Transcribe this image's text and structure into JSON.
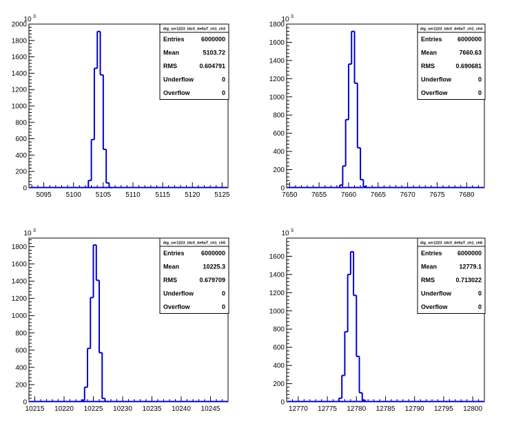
{
  "chart_data": [
    {
      "type": "bar",
      "title": "dig_ser1223_tdc0_deltaT_ch1_ch3",
      "ylim": [
        0,
        2000
      ],
      "xlim": [
        5092.5,
        5126
      ],
      "yticks": [
        0,
        200,
        400,
        600,
        800,
        1000,
        1200,
        1400,
        1600,
        1800,
        2000
      ],
      "xticks": [
        5095,
        5100,
        5105,
        5110,
        5115,
        5120,
        5125
      ],
      "exponent_base": "10",
      "exponent_power": "3",
      "bin_width": 0.5,
      "bins": [
        {
          "x": 5102.0,
          "value": 5
        },
        {
          "x": 5102.5,
          "value": 90
        },
        {
          "x": 5103.0,
          "value": 590
        },
        {
          "x": 5103.5,
          "value": 1460
        },
        {
          "x": 5104.0,
          "value": 1910
        },
        {
          "x": 5104.5,
          "value": 1380
        },
        {
          "x": 5105.0,
          "value": 470
        },
        {
          "x": 5105.5,
          "value": 60
        },
        {
          "x": 5106.0,
          "value": 3
        }
      ],
      "stats": {
        "Entries": "6000000",
        "Mean": "5103.72",
        "RMS": "0.604791",
        "Underflow": "0",
        "Overflow": "0"
      }
    },
    {
      "type": "bar",
      "title": "dig_ser1223_tdc0_deltaT_ch1_ch4",
      "ylim": [
        0,
        1800
      ],
      "xlim": [
        7649.5,
        7683
      ],
      "yticks": [
        0,
        200,
        400,
        600,
        800,
        1000,
        1200,
        1400,
        1600,
        1800
      ],
      "xticks": [
        7650,
        7655,
        7660,
        7665,
        7670,
        7675,
        7680
      ],
      "exponent_base": "10",
      "exponent_power": "3",
      "bin_width": 0.5,
      "bins": [
        {
          "x": 7658.5,
          "value": 30
        },
        {
          "x": 7659.0,
          "value": 240
        },
        {
          "x": 7659.5,
          "value": 750
        },
        {
          "x": 7660.0,
          "value": 1360
        },
        {
          "x": 7660.5,
          "value": 1720
        },
        {
          "x": 7661.0,
          "value": 1150
        },
        {
          "x": 7661.5,
          "value": 440
        },
        {
          "x": 7662.0,
          "value": 90
        },
        {
          "x": 7662.5,
          "value": 15
        }
      ],
      "stats": {
        "Entries": "6000000",
        "Mean": "7660.63",
        "RMS": "0.690681",
        "Underflow": "0",
        "Overflow": "0"
      }
    },
    {
      "type": "bar",
      "title": "dig_ser1223_tdc0_deltaT_ch1_ch5",
      "ylim": [
        0,
        1900
      ],
      "xlim": [
        10214,
        10248
      ],
      "yticks": [
        0,
        200,
        400,
        600,
        800,
        1000,
        1200,
        1400,
        1600,
        1800
      ],
      "xticks": [
        10215,
        10220,
        10225,
        10230,
        10235,
        10240,
        10245
      ],
      "exponent_base": "10",
      "exponent_power": "3",
      "bin_width": 0.5,
      "bins": [
        {
          "x": 10223.0,
          "value": 20
        },
        {
          "x": 10223.5,
          "value": 170
        },
        {
          "x": 10224.0,
          "value": 620
        },
        {
          "x": 10224.5,
          "value": 1210
        },
        {
          "x": 10225.0,
          "value": 1820
        },
        {
          "x": 10225.5,
          "value": 1410
        },
        {
          "x": 10226.0,
          "value": 570
        },
        {
          "x": 10226.5,
          "value": 40
        },
        {
          "x": 10227.0,
          "value": 5
        }
      ],
      "stats": {
        "Entries": "6000000",
        "Mean": "10225.3",
        "RMS": "0.679709",
        "Underflow": "0",
        "Overflow": "0"
      }
    },
    {
      "type": "bar",
      "title": "dig_ser1223_tdc0_deltaT_ch1_ch6",
      "ylim": [
        0,
        1800
      ],
      "xlim": [
        12768,
        12802
      ],
      "yticks": [
        0,
        200,
        400,
        600,
        800,
        1000,
        1200,
        1400,
        1600
      ],
      "xticks": [
        12770,
        12775,
        12780,
        12785,
        12790,
        12795,
        12800
      ],
      "exponent_base": "10",
      "exponent_power": "3",
      "bin_width": 0.5,
      "bins": [
        {
          "x": 12777.0,
          "value": 40
        },
        {
          "x": 12777.5,
          "value": 290
        },
        {
          "x": 12778.0,
          "value": 770
        },
        {
          "x": 12778.5,
          "value": 1400
        },
        {
          "x": 12779.0,
          "value": 1650
        },
        {
          "x": 12779.5,
          "value": 1170
        },
        {
          "x": 12780.0,
          "value": 500
        },
        {
          "x": 12780.5,
          "value": 100
        },
        {
          "x": 12781.0,
          "value": 20
        }
      ],
      "stats": {
        "Entries": "6000000",
        "Mean": "12779.1",
        "RMS": "0.713022",
        "Underflow": "0",
        "Overflow": "0"
      }
    }
  ],
  "style": {
    "histogram_color": "#0000cc",
    "axis_color": "#000000",
    "background": "#ffffff"
  }
}
